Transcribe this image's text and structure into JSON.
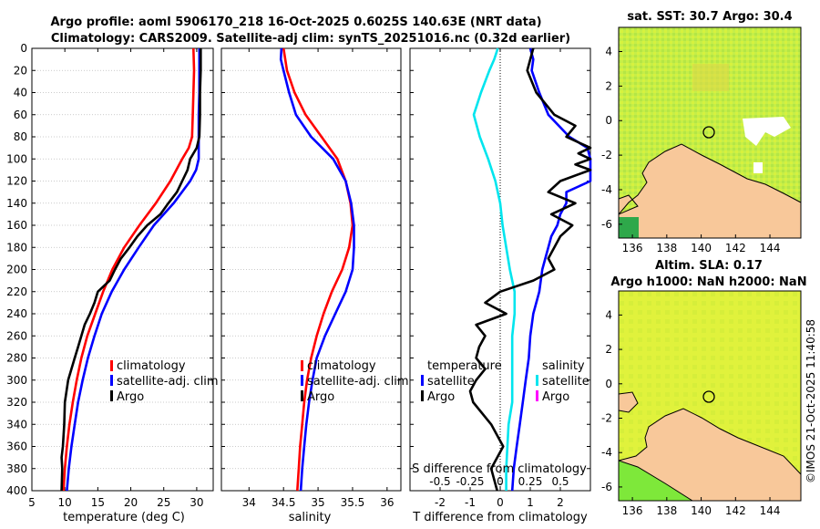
{
  "header": {
    "title_line1": "Argo profile: aoml 5906170_218 16-Oct-2025 0.6025S 140.63E (NRT data)",
    "title_line2": "Climatology: CARS2009. Satellite-adj clim: synTS_20251016.nc (0.32d earlier)"
  },
  "colors": {
    "climatology": "#ff0000",
    "satellite": "#0000ff",
    "argo": "#000000",
    "satellite_salinity": "#00e5ee",
    "argo_salinity": "#ff00ff",
    "land": "#f8c89a",
    "sst_field": "#c8f040",
    "sla_field": "#dff238"
  },
  "chart_data": [
    {
      "type": "line",
      "name": "temperature",
      "xlabel": "temperature (deg C)",
      "ylabel": "",
      "xlim": [
        5,
        32.5
      ],
      "ylim": [
        0,
        400
      ],
      "xticks": [
        "5",
        "10",
        "15",
        "20",
        "25",
        "30"
      ],
      "yticks": [
        "0",
        "20",
        "40",
        "60",
        "80",
        "100",
        "120",
        "140",
        "160",
        "180",
        "200",
        "220",
        "240",
        "260",
        "280",
        "300",
        "320",
        "340",
        "360",
        "380",
        "400"
      ],
      "legend": [
        "climatology",
        "satellite-adj. clim",
        "Argo"
      ],
      "series": [
        {
          "name": "climatology",
          "color": "#ff0000",
          "depth": [
            0,
            20,
            40,
            60,
            80,
            90,
            100,
            120,
            140,
            160,
            180,
            200,
            220,
            240,
            260,
            280,
            300,
            320,
            340,
            360,
            380,
            400
          ],
          "values": [
            29.5,
            29.6,
            29.5,
            29.4,
            29.3,
            28.8,
            27.8,
            26.0,
            23.8,
            21.3,
            19.0,
            17.2,
            15.8,
            14.6,
            13.4,
            12.5,
            11.8,
            11.2,
            10.7,
            10.3,
            10.0,
            9.8
          ]
        },
        {
          "name": "satellite-adj. clim",
          "color": "#0000ff",
          "depth": [
            0,
            20,
            40,
            60,
            80,
            100,
            110,
            120,
            140,
            160,
            180,
            200,
            220,
            240,
            260,
            280,
            300,
            320,
            340,
            360,
            380,
            400
          ],
          "values": [
            30.4,
            30.4,
            30.4,
            30.3,
            30.3,
            30.3,
            29.9,
            29.0,
            26.5,
            23.5,
            21.2,
            19.0,
            17.1,
            15.6,
            14.5,
            13.5,
            12.7,
            12.0,
            11.5,
            11.0,
            10.6,
            10.3
          ]
        },
        {
          "name": "Argo",
          "color": "#000000",
          "depth": [
            0,
            20,
            40,
            60,
            80,
            90,
            100,
            110,
            120,
            130,
            140,
            150,
            160,
            170,
            180,
            190,
            200,
            210,
            220,
            230,
            240,
            250,
            260,
            270,
            280,
            290,
            300,
            320,
            340,
            360,
            370,
            380,
            400
          ],
          "values": [
            30.6,
            30.6,
            30.5,
            30.5,
            30.4,
            30.0,
            29.0,
            28.6,
            27.8,
            27.0,
            25.7,
            24.5,
            22.5,
            21.0,
            19.8,
            18.5,
            17.6,
            16.8,
            15.0,
            14.5,
            13.8,
            13.0,
            12.5,
            12.0,
            11.5,
            11.0,
            10.5,
            10.0,
            9.9,
            9.7,
            9.5,
            9.6,
            9.5
          ]
        }
      ]
    },
    {
      "type": "line",
      "name": "salinity",
      "xlabel": "salinity",
      "xlim": [
        33.6,
        36.2
      ],
      "ylim": [
        0,
        400
      ],
      "xticks": [
        "34",
        "34.5",
        "35",
        "35.5",
        "36"
      ],
      "legend": [
        "climatology",
        "satellite-adj. clim",
        "Argo"
      ],
      "series": [
        {
          "name": "climatology",
          "color": "#ff0000",
          "depth": [
            0,
            20,
            40,
            60,
            80,
            100,
            120,
            140,
            160,
            180,
            200,
            220,
            240,
            260,
            280,
            300,
            320,
            340,
            360,
            380,
            400
          ],
          "values": [
            34.5,
            34.55,
            34.66,
            34.82,
            35.05,
            35.28,
            35.4,
            35.47,
            35.5,
            35.45,
            35.35,
            35.2,
            35.08,
            34.98,
            34.9,
            34.84,
            34.8,
            34.77,
            34.74,
            34.72,
            34.7
          ]
        },
        {
          "name": "satellite-adj. clim",
          "color": "#0000ff",
          "depth": [
            0,
            10,
            20,
            40,
            60,
            80,
            100,
            120,
            140,
            160,
            180,
            200,
            220,
            240,
            260,
            280,
            300,
            320,
            340,
            360,
            380,
            400
          ],
          "values": [
            34.47,
            34.46,
            34.5,
            34.58,
            34.68,
            34.9,
            35.22,
            35.4,
            35.48,
            35.52,
            35.52,
            35.5,
            35.4,
            35.25,
            35.1,
            34.98,
            34.92,
            34.87,
            34.83,
            34.8,
            34.77,
            34.75
          ]
        }
      ]
    },
    {
      "type": "line",
      "name": "difference",
      "xlabel": "T difference from climatology",
      "xlabel_top": "S difference from climatology",
      "xlim": [
        -3,
        3
      ],
      "xlim_salinity": [
        -0.75,
        0.75
      ],
      "ylim": [
        0,
        400
      ],
      "xticks": [
        "-2",
        "-1",
        "0",
        "1",
        "2"
      ],
      "xticks_salinity": [
        "-0.5",
        "-0.25",
        "0",
        "0.25",
        "0.5"
      ],
      "legend_temperature_title": "temperature",
      "legend_salinity_title": "salinity",
      "legend_temperature": [
        "satellite",
        "Argo"
      ],
      "legend_salinity": [
        "satellite",
        "Argo"
      ],
      "series": [
        {
          "name": "T satellite",
          "color": "#0000ff",
          "depth": [
            0,
            10,
            20,
            40,
            60,
            80,
            90,
            100,
            110,
            120,
            130,
            140,
            150,
            160,
            170,
            180,
            190,
            200,
            220,
            240,
            260,
            280,
            300,
            320,
            340,
            360,
            380,
            400
          ],
          "values": [
            1.0,
            1.1,
            1.05,
            1.3,
            1.6,
            2.3,
            2.9,
            3.1,
            3.2,
            3.1,
            2.2,
            2.2,
            2.0,
            1.9,
            1.7,
            1.6,
            1.5,
            1.4,
            1.3,
            1.1,
            1.0,
            0.95,
            0.85,
            0.75,
            0.65,
            0.55,
            0.45,
            0.4
          ]
        },
        {
          "name": "S satellite",
          "color": "#00e5ee",
          "depth": [
            0,
            10,
            20,
            40,
            60,
            80,
            100,
            120,
            140,
            160,
            180,
            200,
            220,
            240,
            260,
            280,
            300,
            320,
            340,
            360,
            380,
            400
          ],
          "values": [
            -0.02,
            -0.05,
            -0.09,
            -0.16,
            -0.22,
            -0.17,
            -0.1,
            -0.04,
            0.0,
            0.02,
            0.05,
            0.08,
            0.12,
            0.12,
            0.1,
            0.1,
            0.1,
            0.1,
            0.07,
            0.06,
            0.05,
            0.05
          ]
        },
        {
          "name": "T Argo",
          "color": "#000000",
          "depth": [
            0,
            10,
            20,
            40,
            60,
            70,
            80,
            90,
            95,
            100,
            105,
            110,
            120,
            130,
            140,
            150,
            160,
            170,
            180,
            190,
            200,
            210,
            220,
            230,
            240,
            250,
            260,
            270,
            280,
            290,
            300,
            310,
            320,
            340,
            360,
            380,
            400
          ],
          "values": [
            1.1,
            1.0,
            0.9,
            1.2,
            1.8,
            2.5,
            2.2,
            3.2,
            2.6,
            3.3,
            2.5,
            3.0,
            2.0,
            1.6,
            2.5,
            1.7,
            2.4,
            2.0,
            1.8,
            1.6,
            1.8,
            1.1,
            0.0,
            -0.5,
            0.2,
            -0.8,
            -0.5,
            -0.7,
            -0.8,
            -0.5,
            -0.8,
            -1.0,
            -0.9,
            -0.3,
            0.1,
            -0.3,
            -0.1
          ]
        }
      ]
    }
  ],
  "map_sst": {
    "title": "sat. SST: 30.7 Argo: 30.4",
    "xticks": [
      "136",
      "138",
      "140",
      "142",
      "144"
    ],
    "yticks": [
      "4",
      "2",
      "0",
      "-2",
      "-4",
      "-6"
    ]
  },
  "map_sla": {
    "title_line1": "Altim. SLA: 0.17",
    "title_line2": "Argo h1000: NaN h2000: NaN",
    "xticks": [
      "136",
      "138",
      "140",
      "142",
      "144"
    ],
    "yticks": [
      "4",
      "2",
      "0",
      "-2",
      "-4",
      "-6"
    ]
  },
  "credit": "©IMOS 21-Oct-2025 11:40:58"
}
